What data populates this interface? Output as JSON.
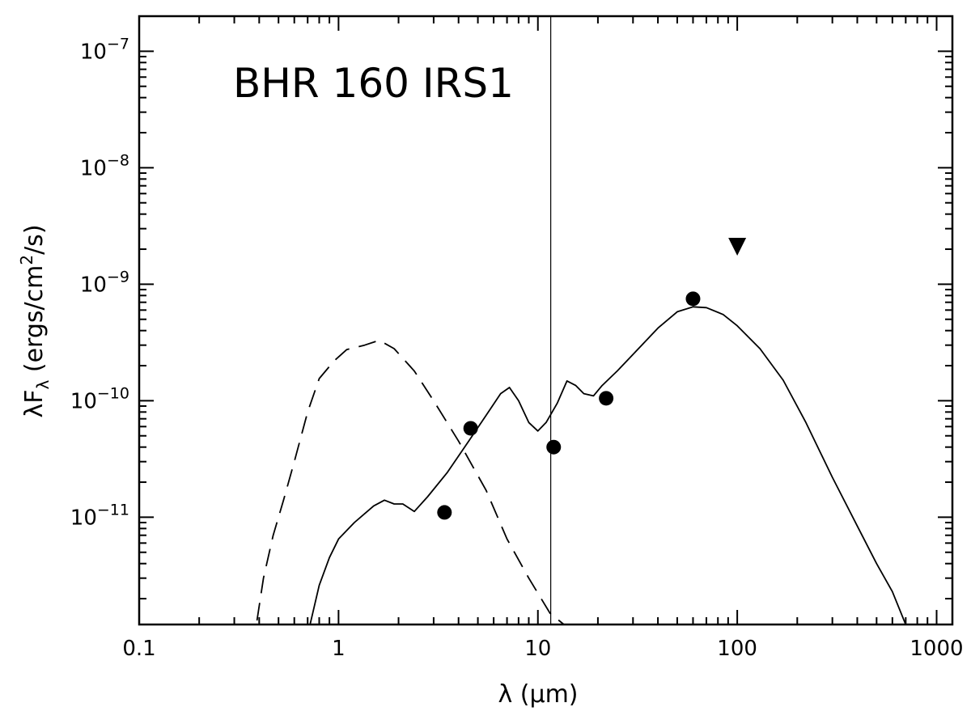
{
  "chart_data": {
    "type": "line",
    "title": "BHR 160 IRS1",
    "xlabel": "λ (μm)",
    "ylabel": {
      "main": "λF",
      "sub": "λ",
      "units_pre": " (ergs/cm",
      "units_sup": "2",
      "units_post": "/s)"
    },
    "x_scale": "log",
    "y_scale": "log",
    "xlim": [
      0.1,
      1200
    ],
    "ylim": [
      1.2e-12,
      2e-07
    ],
    "x_ticks": [
      {
        "value": 0.1,
        "label": "0.1"
      },
      {
        "value": 1,
        "label": "1"
      },
      {
        "value": 10,
        "label": "10"
      },
      {
        "value": 100,
        "label": "100"
      },
      {
        "value": 1000,
        "label": "1000"
      }
    ],
    "y_ticks": [
      {
        "value": 1e-11,
        "mantissa": "10",
        "exponent": "−11"
      },
      {
        "value": 1e-10,
        "mantissa": "10",
        "exponent": "−10"
      },
      {
        "value": 1e-09,
        "mantissa": "10",
        "exponent": "−9"
      },
      {
        "value": 1e-08,
        "mantissa": "10",
        "exponent": "−8"
      },
      {
        "value": 1e-07,
        "mantissa": "10",
        "exponent": "−7"
      }
    ],
    "vertical_line_x": 11.6,
    "grid": false,
    "legend": "none",
    "series": [
      {
        "style": "dashed",
        "x": [
          0.39,
          0.42,
          0.47,
          0.53,
          0.6,
          0.7,
          0.8,
          0.95,
          1.1,
          1.35,
          1.6,
          1.9,
          2.4,
          3.0,
          4.0,
          5.5,
          7.0,
          9.0,
          11.5,
          13.5
        ],
        "y": [
          1.3e-12,
          3e-12,
          7e-12,
          1.4e-11,
          3e-11,
          8e-11,
          1.55e-10,
          2.2e-10,
          2.75e-10,
          3e-10,
          3.3e-10,
          2.8e-10,
          1.8e-10,
          1e-10,
          4.5e-11,
          1.7e-11,
          6.5e-12,
          3e-12,
          1.5e-12,
          1.2e-12
        ]
      },
      {
        "style": "solid",
        "x": [
          0.72,
          0.8,
          0.9,
          1.0,
          1.2,
          1.5,
          1.7,
          1.9,
          2.1,
          2.4,
          2.8,
          3.5,
          4.5,
          5.5,
          6.5,
          7.2,
          8.0,
          9.0,
          10.0,
          11.0,
          12.5,
          14.0,
          15.5,
          17.0,
          19.0,
          21.0,
          25.0,
          30.0,
          40.0,
          50.0,
          60.0,
          70.0,
          85.0,
          100.0,
          130.0,
          170.0,
          220.0,
          300.0,
          400.0,
          500.0,
          600.0,
          700.0
        ],
        "y": [
          1.2e-12,
          2.6e-12,
          4.5e-12,
          6.5e-12,
          9e-12,
          1.25e-11,
          1.4e-11,
          1.3e-11,
          1.3e-11,
          1.12e-11,
          1.5e-11,
          2.4e-11,
          4.5e-11,
          7.5e-11,
          1.15e-10,
          1.3e-10,
          1e-10,
          6.5e-11,
          5.5e-11,
          6.5e-11,
          9.5e-11,
          1.48e-10,
          1.35e-10,
          1.15e-10,
          1.1e-10,
          1.35e-10,
          1.8e-10,
          2.5e-10,
          4.2e-10,
          5.8e-10,
          6.4e-10,
          6.3e-10,
          5.5e-10,
          4.4e-10,
          2.8e-10,
          1.5e-10,
          6.6e-11,
          2.2e-11,
          8.4e-12,
          4e-12,
          2.3e-12,
          1.2e-12
        ]
      }
    ],
    "points": [
      {
        "x": 3.4,
        "y": 1.1e-11,
        "marker": "circle"
      },
      {
        "x": 4.6,
        "y": 5.8e-11,
        "marker": "circle"
      },
      {
        "x": 12.0,
        "y": 4e-11,
        "marker": "circle"
      },
      {
        "x": 22.0,
        "y": 1.05e-10,
        "marker": "circle"
      },
      {
        "x": 60.0,
        "y": 7.5e-10,
        "marker": "circle"
      },
      {
        "x": 100.0,
        "y": 2.1e-09,
        "marker": "down-triangle"
      }
    ]
  }
}
